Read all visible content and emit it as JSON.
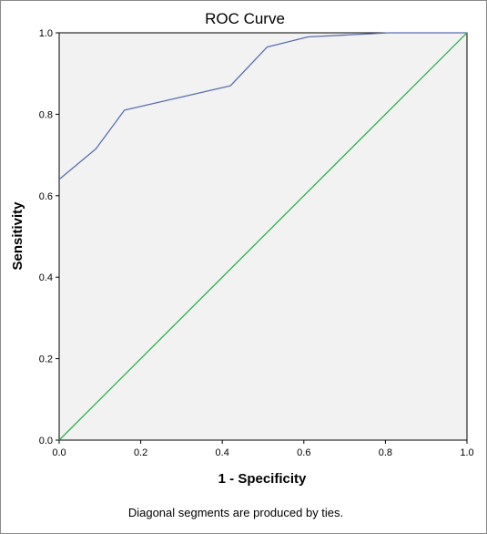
{
  "chart_data": {
    "type": "line",
    "title": "ROC Curve",
    "xlabel": "1 - Specificity",
    "ylabel": "Sensitivity",
    "footnote": "Diagonal segments are produced by ties.",
    "xlim": [
      0,
      1
    ],
    "ylim": [
      0,
      1
    ],
    "x_ticks": [
      "0.0",
      "0.2",
      "0.4",
      "0.6",
      "0.8",
      "1.0"
    ],
    "y_ticks": [
      "0.0",
      "0.2",
      "0.4",
      "0.6",
      "0.8",
      "1.0"
    ],
    "grid": false,
    "plot_background": "#f2f2f2",
    "series": [
      {
        "color": "#5b6fb0",
        "x": [
          0.0,
          0.09,
          0.16,
          0.42,
          0.51,
          0.61,
          0.81,
          1.0
        ],
        "y": [
          0.64,
          0.715,
          0.81,
          0.87,
          0.965,
          0.99,
          1.0,
          1.0
        ]
      },
      {
        "color": "#2bb24c",
        "x": [
          0.0,
          1.0
        ],
        "y": [
          0.0,
          1.0
        ]
      }
    ]
  }
}
